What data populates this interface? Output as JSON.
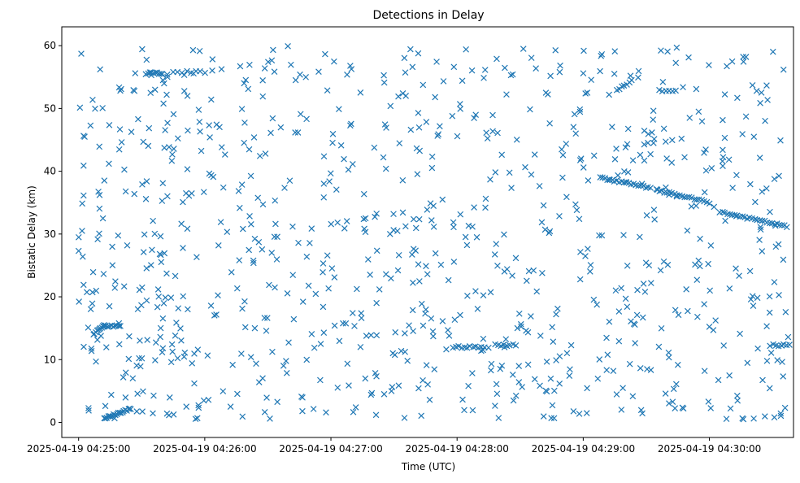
{
  "chart_data": {
    "type": "scatter",
    "title": "Detections in Delay",
    "xlabel": "Time (UTC)",
    "ylabel": "Bistatic Delay (km)",
    "marker": "x",
    "color": "#1f77b4",
    "x_range_seconds": [
      -8,
      340
    ],
    "x_origin": "2025-04-19 04:25:00",
    "ylim": [
      -2.4,
      63.0
    ],
    "x_ticks": [
      {
        "seconds": 0,
        "label": "2025-04-19 04:25:00"
      },
      {
        "seconds": 60,
        "label": "2025-04-19 04:26:00"
      },
      {
        "seconds": 120,
        "label": "2025-04-19 04:27:00"
      },
      {
        "seconds": 180,
        "label": "2025-04-19 04:28:00"
      },
      {
        "seconds": 240,
        "label": "2025-04-19 04:29:00"
      },
      {
        "seconds": 300,
        "label": "2025-04-19 04:30:00"
      }
    ],
    "y_ticks": [
      0,
      10,
      20,
      30,
      40,
      50,
      60
    ],
    "grid": false,
    "legend": "none",
    "tracks": [
      {
        "x": [
          12,
          25
        ],
        "y": [
          0.6,
          2.2
        ],
        "n": 20
      },
      {
        "x": [
          7,
          12
        ],
        "y": [
          14.0,
          15.5
        ],
        "n": 10
      },
      {
        "x": [
          12,
          20
        ],
        "y": [
          15.3,
          15.4
        ],
        "n": 10
      },
      {
        "x": [
          32,
          40
        ],
        "y": [
          55.6,
          55.6
        ],
        "n": 10
      },
      {
        "x": [
          45,
          60
        ],
        "y": [
          55.8,
          55.8
        ],
        "n": 8
      },
      {
        "x": [
          178,
          193
        ],
        "y": [
          12.0,
          12.0
        ],
        "n": 12
      },
      {
        "x": [
          198,
          208
        ],
        "y": [
          12.3,
          12.3
        ],
        "n": 8
      },
      {
        "x": [
          248,
          272
        ],
        "y": [
          39.0,
          37.3
        ],
        "n": 22
      },
      {
        "x": [
          275,
          300
        ],
        "y": [
          37.0,
          35.0
        ],
        "n": 22
      },
      {
        "x": [
          305,
          337
        ],
        "y": [
          33.5,
          31.2
        ],
        "n": 28
      },
      {
        "x": [
          256,
          263
        ],
        "y": [
          52.8,
          54.5
        ],
        "n": 7
      },
      {
        "x": [
          276,
          284
        ],
        "y": [
          52.8,
          52.8
        ],
        "n": 6
      },
      {
        "x": [
          329,
          338
        ],
        "y": [
          12.3,
          12.3
        ],
        "n": 8
      }
    ],
    "scatter": {
      "x_range": [
        0,
        338
      ],
      "y_range": [
        0.5,
        60.0
      ],
      "n": 900,
      "seed": 7
    }
  }
}
